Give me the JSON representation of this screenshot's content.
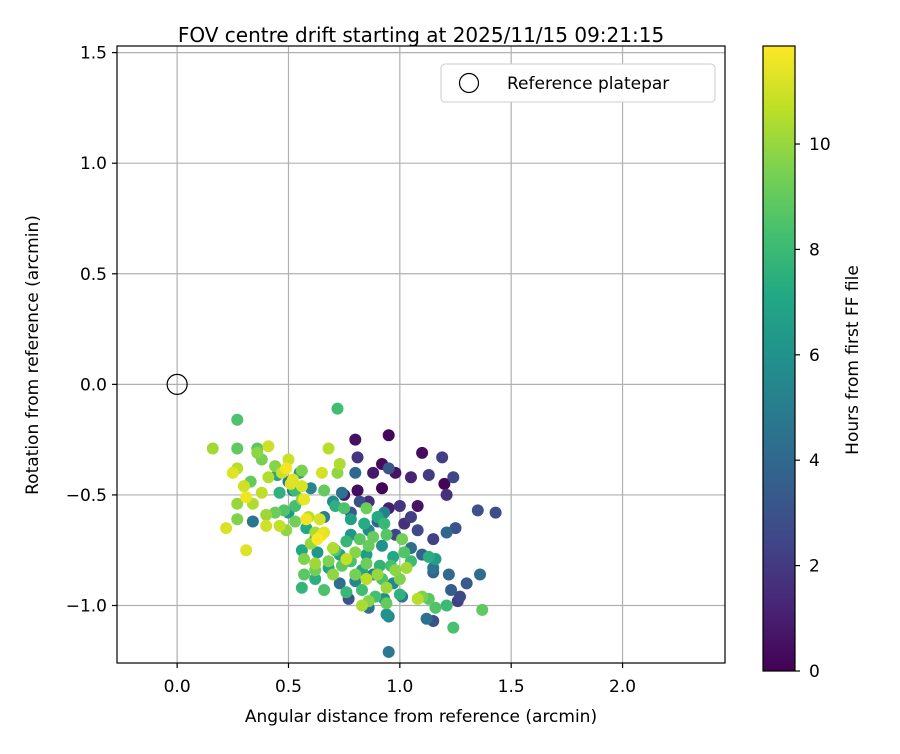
{
  "chart_data": {
    "type": "scatter",
    "title": "FOV centre drift starting at 2025/11/15 09:21:15",
    "xlabel": "Angular distance from reference (arcmin)",
    "ylabel": "Rotation from reference (arcmin)",
    "xlim": [
      -0.27,
      2.46
    ],
    "ylim": [
      -1.26,
      1.53
    ],
    "xticks": [
      0.0,
      0.5,
      1.0,
      1.5,
      2.0
    ],
    "xtick_labels": [
      "0.0",
      "0.5",
      "1.0",
      "1.5",
      "2.0"
    ],
    "yticks": [
      -1.0,
      -0.5,
      0.0,
      0.5,
      1.0,
      1.5
    ],
    "ytick_labels": [
      "−1.0",
      "−0.5",
      "0.0",
      "0.5",
      "1.0",
      "1.5"
    ],
    "grid": true,
    "legend": {
      "position": "top-right",
      "entries": [
        "Reference platepar"
      ]
    },
    "reference_point": {
      "x": 0.0,
      "y": 0.0
    },
    "colorbar": {
      "label": "Hours from first FF file",
      "range": [
        0,
        11.86
      ],
      "ticks": [
        0,
        2,
        4,
        6,
        8,
        10
      ],
      "tick_labels": [
        "0",
        "2",
        "4",
        "6",
        "8",
        "10"
      ],
      "colormap": "viridis"
    },
    "points": [
      [
        0.95,
        -0.23,
        0.2
      ],
      [
        0.8,
        -0.25,
        0.5
      ],
      [
        1.1,
        -0.31,
        0.4
      ],
      [
        0.92,
        -0.36,
        0.3
      ],
      [
        0.98,
        -0.4,
        0.6
      ],
      [
        0.88,
        -0.4,
        0.8
      ],
      [
        1.05,
        -0.42,
        1.2
      ],
      [
        1.2,
        -0.45,
        0.1
      ],
      [
        0.92,
        -0.47,
        0.1
      ],
      [
        0.81,
        -0.48,
        0.4
      ],
      [
        0.75,
        -0.5,
        0.9
      ],
      [
        0.86,
        -0.53,
        1.5
      ],
      [
        1.0,
        -0.55,
        1.8
      ],
      [
        1.08,
        -0.55,
        0.6
      ],
      [
        0.95,
        -0.56,
        1.0
      ],
      [
        1.13,
        -0.41,
        2.0
      ],
      [
        1.21,
        -0.5,
        1.6
      ],
      [
        1.24,
        -0.42,
        2.5
      ],
      [
        0.81,
        -0.33,
        1.8
      ],
      [
        1.19,
        -0.33,
        2.2
      ],
      [
        0.95,
        -0.38,
        3.2
      ],
      [
        1.35,
        -0.57,
        3.0
      ],
      [
        1.43,
        -0.58,
        2.8
      ],
      [
        1.25,
        -0.65,
        3.0
      ],
      [
        1.05,
        -0.6,
        2.1
      ],
      [
        1.02,
        -0.63,
        1.7
      ],
      [
        1.08,
        -0.66,
        2.6
      ],
      [
        1.15,
        -0.7,
        2.3
      ],
      [
        1.21,
        -0.67,
        4.0
      ],
      [
        0.98,
        -0.68,
        2.4
      ],
      [
        0.9,
        -0.62,
        3.6
      ],
      [
        0.82,
        -0.53,
        2.9
      ],
      [
        0.78,
        -0.58,
        3.3
      ],
      [
        0.93,
        -0.58,
        5.1
      ],
      [
        1.05,
        -0.74,
        4.3
      ],
      [
        1.1,
        -0.77,
        3.7
      ],
      [
        1.15,
        -0.83,
        4.6
      ],
      [
        1.22,
        -0.86,
        4.1
      ],
      [
        1.15,
        -0.85,
        3.9
      ],
      [
        1.3,
        -0.9,
        3.4
      ],
      [
        1.27,
        -0.96,
        2.6
      ],
      [
        1.23,
        -0.93,
        3.5
      ],
      [
        1.26,
        -0.98,
        2.2
      ],
      [
        1.15,
        -1.07,
        2.9
      ],
      [
        1.12,
        -1.06,
        4.4
      ],
      [
        1.01,
        -0.96,
        4.7
      ],
      [
        0.93,
        -0.97,
        5.8
      ],
      [
        0.86,
        -1.01,
        4.5
      ],
      [
        0.95,
        -1.05,
        5.4
      ],
      [
        0.94,
        -1.04,
        6.0
      ],
      [
        0.95,
        -1.21,
        4.8
      ],
      [
        0.77,
        -0.97,
        3.0
      ],
      [
        0.8,
        -0.89,
        5.4
      ],
      [
        0.73,
        -0.9,
        4.3
      ],
      [
        0.88,
        -0.86,
        5.0
      ],
      [
        0.97,
        -0.9,
        5.5
      ],
      [
        1.36,
        -0.86,
        4.2
      ],
      [
        0.8,
        -0.4,
        4.0
      ],
      [
        0.74,
        -0.49,
        4.5
      ],
      [
        0.7,
        -0.53,
        5.7
      ],
      [
        0.78,
        -0.68,
        6.2
      ],
      [
        0.86,
        -0.66,
        5.5
      ],
      [
        0.92,
        -0.73,
        6.0
      ],
      [
        0.85,
        -0.77,
        6.5
      ],
      [
        0.73,
        -0.77,
        6.7
      ],
      [
        0.62,
        -0.7,
        5.9
      ],
      [
        0.66,
        -0.6,
        5.0
      ],
      [
        0.6,
        -0.47,
        5.4
      ],
      [
        0.52,
        -0.48,
        5.2
      ],
      [
        0.55,
        -0.4,
        6.5
      ],
      [
        0.45,
        -0.41,
        6.8
      ],
      [
        0.5,
        -0.44,
        4.6
      ],
      [
        0.34,
        -0.62,
        4.6
      ],
      [
        0.5,
        -0.58,
        6.3
      ],
      [
        0.58,
        -0.65,
        7.2
      ],
      [
        0.56,
        -0.75,
        7.0
      ],
      [
        0.63,
        -0.76,
        6.2
      ],
      [
        0.68,
        -0.83,
        6.9
      ],
      [
        0.62,
        -0.88,
        7.5
      ],
      [
        0.56,
        -0.92,
        7.8
      ],
      [
        0.66,
        -0.93,
        8.5
      ],
      [
        0.76,
        -0.94,
        7.9
      ],
      [
        0.83,
        -0.93,
        8.2
      ],
      [
        0.89,
        -0.96,
        8.3
      ],
      [
        0.94,
        -0.99,
        9.0
      ],
      [
        1.0,
        -0.95,
        7.6
      ],
      [
        1.13,
        -0.97,
        8.8
      ],
      [
        1.1,
        -0.96,
        9.5
      ],
      [
        1.16,
        -1.01,
        8.6
      ],
      [
        1.21,
        -1.0,
        8.0
      ],
      [
        1.24,
        -1.1,
        8.4
      ],
      [
        1.37,
        -1.02,
        8.9
      ],
      [
        1.13,
        -0.78,
        7.4
      ],
      [
        1.16,
        -0.79,
        6.6
      ],
      [
        1.05,
        -0.8,
        8.1
      ],
      [
        0.97,
        -0.78,
        7.1
      ],
      [
        0.91,
        -0.82,
        7.7
      ],
      [
        0.83,
        -0.84,
        6.9
      ],
      [
        0.78,
        -0.8,
        8.4
      ],
      [
        0.71,
        -0.75,
        8.7
      ],
      [
        0.76,
        -0.71,
        7.8
      ],
      [
        0.82,
        -0.7,
        8.8
      ],
      [
        0.88,
        -0.69,
        9.1
      ],
      [
        0.84,
        -0.63,
        7.3
      ],
      [
        0.78,
        -0.61,
        6.7
      ],
      [
        0.71,
        -0.55,
        7.5
      ],
      [
        0.75,
        -0.56,
        8.5
      ],
      [
        0.85,
        -0.56,
        9.2
      ],
      [
        0.9,
        -0.6,
        7.2
      ],
      [
        0.93,
        -0.63,
        7.9
      ],
      [
        0.72,
        -0.11,
        8.2
      ],
      [
        0.27,
        -0.16,
        8.5
      ],
      [
        0.27,
        -0.29,
        8.9
      ],
      [
        0.36,
        -0.29,
        8.8
      ],
      [
        0.38,
        -0.34,
        9.4
      ],
      [
        0.33,
        -0.44,
        9.0
      ],
      [
        0.44,
        -0.37,
        9.7
      ],
      [
        0.46,
        -0.49,
        7.6
      ],
      [
        0.53,
        -0.48,
        8.1
      ],
      [
        0.56,
        -0.52,
        9.8
      ],
      [
        0.53,
        -0.55,
        8.3
      ],
      [
        0.48,
        -0.57,
        8.6
      ],
      [
        0.44,
        -0.58,
        9.2
      ],
      [
        0.4,
        -0.59,
        10.1
      ],
      [
        0.34,
        -0.54,
        10.4
      ],
      [
        0.27,
        -0.54,
        10.0
      ],
      [
        0.27,
        -0.61,
        9.6
      ],
      [
        0.22,
        -0.65,
        11.2
      ],
      [
        0.31,
        -0.75,
        11.3
      ],
      [
        0.4,
        -0.64,
        11.0
      ],
      [
        0.46,
        -0.64,
        10.8
      ],
      [
        0.49,
        -0.66,
        9.9
      ],
      [
        0.53,
        -0.62,
        9.3
      ],
      [
        0.59,
        -0.6,
        10.6
      ],
      [
        0.62,
        -0.67,
        10.3
      ],
      [
        0.6,
        -0.72,
        10.0
      ],
      [
        0.57,
        -0.79,
        9.6
      ],
      [
        0.62,
        -0.81,
        10.1
      ],
      [
        0.66,
        -0.67,
        11.4
      ],
      [
        0.64,
        -0.61,
        11.1
      ],
      [
        0.57,
        -0.52,
        11.5
      ],
      [
        0.51,
        -0.45,
        11.2
      ],
      [
        0.47,
        -0.4,
        10.9
      ],
      [
        0.41,
        -0.42,
        10.5
      ],
      [
        0.38,
        -0.49,
        10.7
      ],
      [
        0.31,
        -0.51,
        11.6
      ],
      [
        0.3,
        -0.46,
        11.0
      ],
      [
        0.25,
        -0.4,
        11.3
      ],
      [
        0.27,
        -0.38,
        10.6
      ],
      [
        0.16,
        -0.29,
        10.2
      ],
      [
        0.41,
        -0.28,
        11.0
      ],
      [
        0.36,
        -0.31,
        9.8
      ],
      [
        0.49,
        -0.38,
        11.7
      ],
      [
        0.5,
        -0.34,
        10.9
      ],
      [
        0.56,
        -0.39,
        9.5
      ],
      [
        0.52,
        -0.43,
        11.3
      ],
      [
        0.56,
        -0.46,
        11.2
      ],
      [
        0.58,
        -0.61,
        11.6
      ],
      [
        0.63,
        -0.7,
        11.8
      ],
      [
        0.65,
        -0.68,
        11.5
      ],
      [
        0.68,
        -0.29,
        10.6
      ],
      [
        0.65,
        -0.4,
        11.1
      ],
      [
        0.66,
        -0.48,
        9.0
      ],
      [
        0.72,
        -0.4,
        9.9
      ],
      [
        0.73,
        -0.36,
        10.4
      ],
      [
        0.68,
        -0.8,
        9.5
      ],
      [
        0.62,
        -0.84,
        9.3
      ],
      [
        0.57,
        -0.86,
        8.8
      ],
      [
        0.83,
        -1.0,
        10.3
      ],
      [
        0.86,
        -0.98,
        9.7
      ],
      [
        0.94,
        -0.92,
        10.1
      ],
      [
        1.0,
        -0.88,
        9.6
      ],
      [
        1.03,
        -0.83,
        10.2
      ],
      [
        1.08,
        -0.97,
        10.6
      ],
      [
        0.98,
        -0.84,
        9.8
      ],
      [
        0.9,
        -0.86,
        10.0
      ],
      [
        0.85,
        -0.81,
        9.2
      ],
      [
        0.8,
        -0.76,
        9.7
      ],
      [
        0.76,
        -0.79,
        10.8
      ],
      [
        0.7,
        -0.74,
        10.4
      ],
      [
        0.86,
        -0.73,
        9.1
      ],
      [
        0.94,
        -0.68,
        8.7
      ],
      [
        1.01,
        -0.7,
        9.3
      ],
      [
        1.02,
        -0.76,
        8.6
      ],
      [
        0.92,
        -0.88,
        8.5
      ],
      [
        0.8,
        -0.86,
        9.4
      ],
      [
        0.74,
        -0.82,
        8.9
      ],
      [
        0.7,
        -0.86,
        9.9
      ],
      [
        0.85,
        -0.88,
        10.6
      ],
      [
        0.96,
        -0.82,
        8.3
      ]
    ]
  }
}
